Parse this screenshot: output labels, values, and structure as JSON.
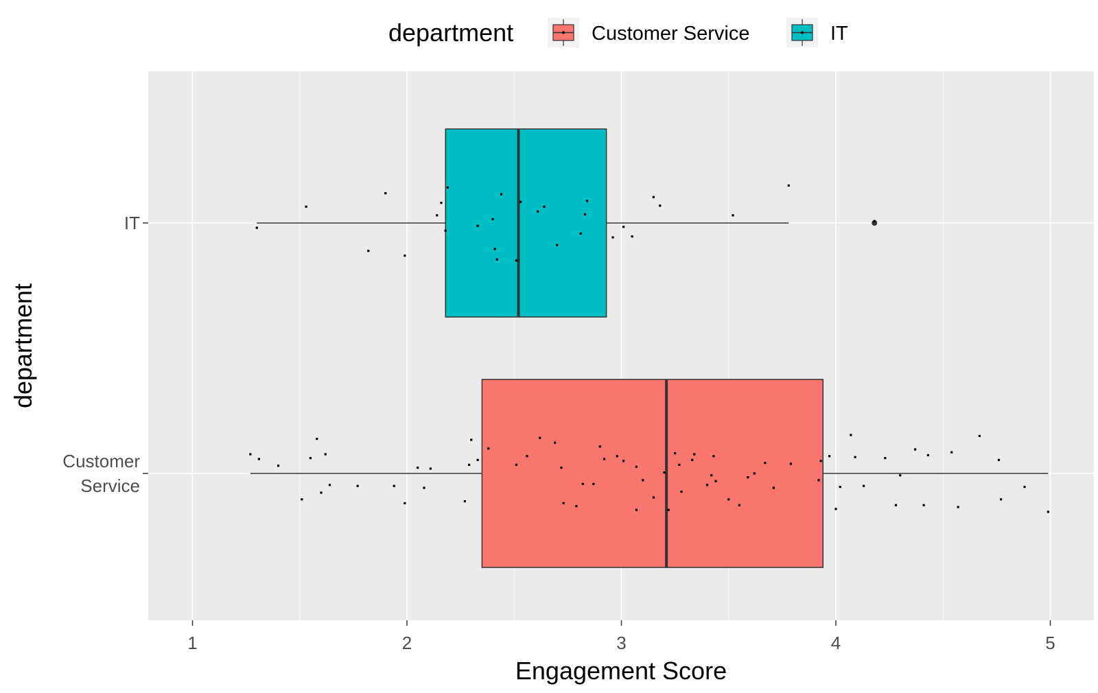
{
  "chart_data": {
    "type": "boxplot",
    "orientation": "horizontal",
    "title": "",
    "xlabel": "Engagement Score",
    "ylabel": "department",
    "xlim": [
      0.8,
      5.2
    ],
    "x_ticks": [
      "1",
      "2",
      "3",
      "4",
      "5"
    ],
    "grid": true,
    "legend": {
      "title": "department",
      "position": "top",
      "entries": [
        "Customer Service",
        "IT"
      ]
    },
    "categories": [
      "Customer Service",
      "IT"
    ],
    "category_tick_labels": [
      [
        "Customer",
        "Service"
      ],
      [
        "IT"
      ]
    ],
    "series": [
      {
        "name": "Customer Service",
        "color": "#F8766D",
        "whisker_low": 1.27,
        "q1": 2.35,
        "median": 3.21,
        "q3": 3.94,
        "whisker_high": 4.99,
        "outliers": [],
        "points": [
          [
            1.27,
            0.2
          ],
          [
            1.31,
            0.15
          ],
          [
            1.4,
            0.08
          ],
          [
            1.51,
            -0.27
          ],
          [
            1.58,
            0.36
          ],
          [
            1.6,
            -0.2
          ],
          [
            1.62,
            0.2
          ],
          [
            1.64,
            -0.12
          ],
          [
            1.55,
            0.16
          ],
          [
            1.77,
            -0.13
          ],
          [
            1.94,
            -0.13
          ],
          [
            1.99,
            -0.31
          ],
          [
            2.05,
            0.06
          ],
          [
            2.08,
            -0.15
          ],
          [
            2.11,
            0.05
          ],
          [
            2.27,
            -0.29
          ],
          [
            2.29,
            0.09
          ],
          [
            2.3,
            0.35
          ],
          [
            2.33,
            0.14
          ],
          [
            2.38,
            0.26
          ],
          [
            2.51,
            0.09
          ],
          [
            2.56,
            0.18
          ],
          [
            2.62,
            0.37
          ],
          [
            2.69,
            0.32
          ],
          [
            2.72,
            0.06
          ],
          [
            2.73,
            -0.31
          ],
          [
            2.79,
            -0.34
          ],
          [
            2.82,
            -0.11
          ],
          [
            2.87,
            -0.11
          ],
          [
            2.9,
            0.28
          ],
          [
            2.92,
            0.15
          ],
          [
            2.98,
            0.18
          ],
          [
            3.01,
            0.13
          ],
          [
            3.07,
            -0.38
          ],
          [
            3.07,
            0.07
          ],
          [
            3.1,
            -0.07
          ],
          [
            3.15,
            -0.25
          ],
          [
            3.2,
            0.01
          ],
          [
            3.22,
            -0.38
          ],
          [
            3.25,
            0.21
          ],
          [
            3.27,
            0.09
          ],
          [
            3.28,
            -0.19
          ],
          [
            3.33,
            0.14
          ],
          [
            3.34,
            0.2
          ],
          [
            3.4,
            -0.12
          ],
          [
            3.42,
            -0.02
          ],
          [
            3.43,
            0.18
          ],
          [
            3.44,
            -0.08
          ],
          [
            3.5,
            -0.27
          ],
          [
            3.55,
            -0.33
          ],
          [
            3.59,
            -0.04
          ],
          [
            3.62,
            0.0
          ],
          [
            3.67,
            0.11
          ],
          [
            3.71,
            -0.15
          ],
          [
            3.79,
            0.1
          ],
          [
            3.92,
            -0.07
          ],
          [
            3.93,
            0.13
          ],
          [
            3.97,
            0.18
          ],
          [
            4.0,
            -0.37
          ],
          [
            4.02,
            -0.14
          ],
          [
            4.07,
            0.4
          ],
          [
            4.09,
            0.17
          ],
          [
            4.13,
            -0.13
          ],
          [
            4.23,
            0.16
          ],
          [
            4.28,
            -0.33
          ],
          [
            4.3,
            -0.02
          ],
          [
            4.37,
            0.25
          ],
          [
            4.41,
            -0.33
          ],
          [
            4.43,
            0.19
          ],
          [
            4.54,
            0.22
          ],
          [
            4.57,
            -0.35
          ],
          [
            4.67,
            0.39
          ],
          [
            4.76,
            0.14
          ],
          [
            4.77,
            -0.27
          ],
          [
            4.88,
            -0.14
          ],
          [
            4.99,
            -0.4
          ]
        ]
      },
      {
        "name": "IT",
        "color": "#00BFC4",
        "whisker_low": 1.3,
        "q1": 2.18,
        "median": 2.52,
        "q3": 2.93,
        "whisker_high": 3.78,
        "outliers": [
          4.18
        ],
        "points": [
          [
            1.3,
            -0.05
          ],
          [
            1.53,
            0.17
          ],
          [
            1.82,
            -0.29
          ],
          [
            1.9,
            0.31
          ],
          [
            1.99,
            -0.34
          ],
          [
            2.14,
            0.08
          ],
          [
            2.16,
            0.21
          ],
          [
            2.18,
            -0.08
          ],
          [
            2.19,
            0.37
          ],
          [
            2.33,
            -0.03
          ],
          [
            2.4,
            0.04
          ],
          [
            2.41,
            -0.27
          ],
          [
            2.42,
            -0.38
          ],
          [
            2.44,
            0.3
          ],
          [
            2.51,
            -0.39
          ],
          [
            2.53,
            0.22
          ],
          [
            2.61,
            0.12
          ],
          [
            2.64,
            0.17
          ],
          [
            2.7,
            -0.23
          ],
          [
            2.81,
            -0.11
          ],
          [
            2.83,
            0.09
          ],
          [
            2.84,
            0.23
          ],
          [
            2.96,
            -0.15
          ],
          [
            3.01,
            -0.04
          ],
          [
            3.05,
            -0.14
          ],
          [
            3.15,
            0.27
          ],
          [
            3.18,
            0.18
          ],
          [
            3.52,
            0.08
          ],
          [
            3.78,
            0.39
          ],
          [
            4.18,
            0.02
          ]
        ]
      }
    ]
  }
}
